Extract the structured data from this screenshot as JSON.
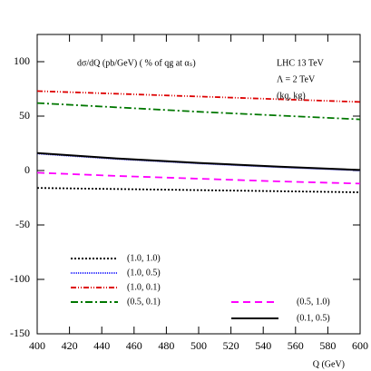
{
  "chart_data": {
    "type": "line",
    "annotations": [
      "dσ/dQ (pb/GeV) ( % of qg at αₛ)",
      "LHC 13 TeV",
      "Λ = 2 TeV",
      "(kq, kg)"
    ],
    "x_label": "Q (GeV)",
    "x": [
      400,
      450,
      500,
      550,
      600
    ],
    "series": [
      {
        "name": "(1.0, 1.0)",
        "color": "#000000",
        "dash": "2,2",
        "values": [
          -16,
          -17,
          -18,
          -19,
          -20
        ]
      },
      {
        "name": "(1.0, 0.5)",
        "color": "#3333ff",
        "dash": "1,1",
        "values": [
          15.5,
          10.5,
          6.5,
          3,
          0
        ]
      },
      {
        "name": "(1.0, 0.1)",
        "color": "#dd0000",
        "dash": "6,2,1,2,1,2",
        "values": [
          73,
          70.5,
          68,
          65.5,
          63
        ]
      },
      {
        "name": "(0.5, 0.1)",
        "color": "#007700",
        "dash": "8,3,2,3",
        "values": [
          62,
          58,
          54,
          50.5,
          47
        ]
      },
      {
        "name": "(0.5, 1.0)",
        "color": "#ff00ff",
        "dash": "8,5",
        "values": [
          -2,
          -5,
          -7.5,
          -10,
          -12
        ]
      },
      {
        "name": "(0.1, 0.5)",
        "color": "#000000",
        "dash": "",
        "values": [
          16,
          11,
          7,
          3.5,
          0.5
        ]
      }
    ],
    "xlim": [
      400,
      600
    ],
    "xticks": [
      400,
      420,
      440,
      460,
      480,
      500,
      520,
      540,
      560,
      580,
      600
    ],
    "ylim": [
      -150,
      125
    ],
    "yticks": [
      -150,
      -100,
      -50,
      0,
      50,
      100
    ]
  }
}
